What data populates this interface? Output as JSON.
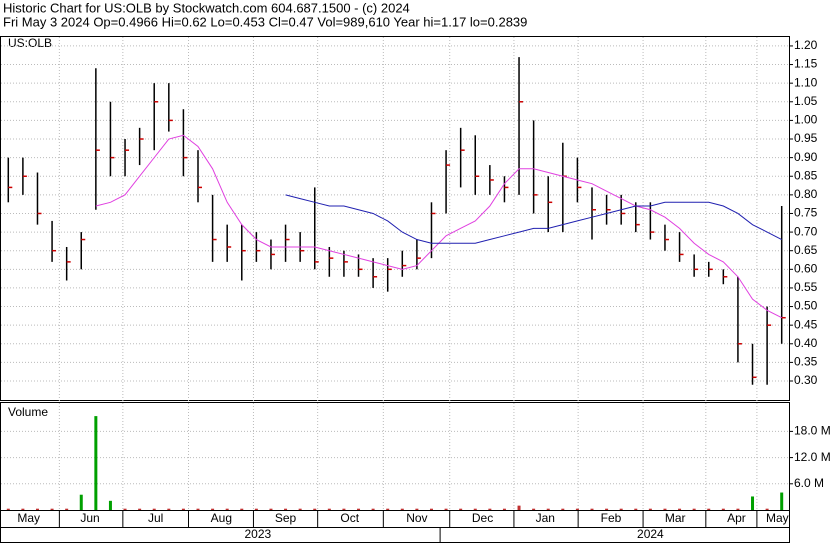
{
  "chart_data": {
    "type": "ohlc",
    "title": "Historic Chart for US:OLB by Stockwatch.com 604.687.1500 - (c) 2024",
    "subtitle": "Fri May  3 2024  Op=0.4966  Hi=0.62  Lo=0.453  Cl=0.47  Vol=989,610  Year hi=1.17  lo=0.2839",
    "symbol": "US:OLB",
    "volume_label": "Volume",
    "xlim": [
      0,
      54
    ],
    "xticks": [
      {
        "value": 1.9,
        "label": "May"
      },
      {
        "value": 6.1,
        "label": "Jun"
      },
      {
        "value": 10.6,
        "label": "Jul"
      },
      {
        "value": 15.1,
        "label": "Aug"
      },
      {
        "value": 19.5,
        "label": "Sep"
      },
      {
        "value": 23.9,
        "label": "Oct"
      },
      {
        "value": 28.5,
        "label": "Nov"
      },
      {
        "value": 33.0,
        "label": "Dec"
      },
      {
        "value": 37.3,
        "label": "Jan"
      },
      {
        "value": 41.8,
        "label": "Feb"
      },
      {
        "value": 46.2,
        "label": "Mar"
      },
      {
        "value": 50.4,
        "label": "Apr"
      },
      {
        "value": 53.2,
        "label": "May"
      }
    ],
    "years": [
      {
        "value": 17.6,
        "label": "2023"
      },
      {
        "value": 44.5,
        "label": "2024"
      }
    ],
    "ylim": [
      0.249,
      1.224
    ],
    "yticks": [
      {
        "value": 0.3,
        "label": "0.30"
      },
      {
        "value": 0.35,
        "label": "0.35"
      },
      {
        "value": 0.4,
        "label": "0.40"
      },
      {
        "value": 0.45,
        "label": "0.45"
      },
      {
        "value": 0.5,
        "label": "0.50"
      },
      {
        "value": 0.55,
        "label": "0.55"
      },
      {
        "value": 0.6,
        "label": "0.60"
      },
      {
        "value": 0.65,
        "label": "0.65"
      },
      {
        "value": 0.7,
        "label": "0.70"
      },
      {
        "value": 0.75,
        "label": "0.75"
      },
      {
        "value": 0.8,
        "label": "0.80"
      },
      {
        "value": 0.85,
        "label": "0.85"
      },
      {
        "value": 0.9,
        "label": "0.90"
      },
      {
        "value": 0.95,
        "label": "0.95"
      },
      {
        "value": 1.0,
        "label": "1.00"
      },
      {
        "value": 1.05,
        "label": "1.05"
      },
      {
        "value": 1.1,
        "label": "1.10"
      },
      {
        "value": 1.15,
        "label": "1.15"
      },
      {
        "value": 1.2,
        "label": "1.20"
      }
    ],
    "high": [
      0.9,
      0.9,
      0.86,
      0.73,
      0.66,
      0.7,
      1.14,
      1.05,
      0.95,
      0.98,
      1.1,
      1.1,
      1.03,
      0.92,
      0.8,
      0.72,
      0.72,
      0.7,
      0.68,
      0.72,
      0.7,
      0.82,
      0.66,
      0.65,
      0.64,
      0.63,
      0.63,
      0.65,
      0.68,
      0.78,
      0.92,
      0.98,
      0.96,
      0.88,
      0.85,
      1.17,
      1.0,
      0.85,
      0.94,
      0.9,
      0.82,
      0.8,
      0.8,
      0.78,
      0.78,
      0.72,
      0.7,
      0.64,
      0.62,
      0.6,
      0.58,
      0.4,
      0.5,
      0.77
    ],
    "low": [
      0.78,
      0.8,
      0.72,
      0.62,
      0.57,
      0.6,
      0.76,
      0.85,
      0.85,
      0.88,
      0.92,
      0.97,
      0.85,
      0.78,
      0.62,
      0.62,
      0.57,
      0.62,
      0.6,
      0.62,
      0.62,
      0.6,
      0.58,
      0.58,
      0.58,
      0.55,
      0.54,
      0.58,
      0.6,
      0.63,
      0.75,
      0.82,
      0.8,
      0.8,
      0.78,
      0.8,
      0.75,
      0.7,
      0.7,
      0.78,
      0.68,
      0.72,
      0.72,
      0.7,
      0.68,
      0.65,
      0.62,
      0.58,
      0.58,
      0.56,
      0.35,
      0.29,
      0.29,
      0.4
    ],
    "close": [
      0.82,
      0.85,
      0.75,
      0.65,
      0.62,
      0.68,
      0.92,
      0.9,
      0.92,
      0.95,
      1.05,
      1.0,
      0.9,
      0.82,
      0.68,
      0.66,
      0.65,
      0.65,
      0.64,
      0.68,
      0.65,
      0.62,
      0.63,
      0.62,
      0.6,
      0.58,
      0.6,
      0.61,
      0.63,
      0.75,
      0.88,
      0.92,
      0.85,
      0.84,
      0.82,
      1.05,
      0.8,
      0.78,
      0.85,
      0.82,
      0.76,
      0.76,
      0.75,
      0.72,
      0.7,
      0.68,
      0.64,
      0.6,
      0.6,
      0.58,
      0.4,
      0.31,
      0.45,
      0.47
    ],
    "bar_color": "#000000",
    "close_color": "#cc0000",
    "series": [
      {
        "color": "#e040e0",
        "values": [
          null,
          null,
          null,
          null,
          null,
          null,
          0.77,
          0.78,
          0.8,
          0.85,
          0.9,
          0.95,
          0.96,
          0.93,
          0.87,
          0.78,
          0.72,
          0.68,
          0.66,
          0.66,
          0.66,
          0.66,
          0.65,
          0.64,
          0.63,
          0.62,
          0.61,
          0.6,
          0.61,
          0.65,
          0.69,
          0.71,
          0.73,
          0.77,
          0.83,
          0.87,
          0.87,
          0.86,
          0.85,
          0.84,
          0.83,
          0.81,
          0.79,
          0.77,
          0.76,
          0.74,
          0.71,
          0.67,
          0.64,
          0.62,
          0.58,
          0.52,
          0.49,
          0.47
        ]
      },
      {
        "color": "#2020b0",
        "values": [
          null,
          null,
          null,
          null,
          null,
          null,
          null,
          null,
          null,
          null,
          null,
          null,
          null,
          null,
          null,
          null,
          null,
          null,
          null,
          0.8,
          0.79,
          0.78,
          0.77,
          0.77,
          0.76,
          0.75,
          0.73,
          0.7,
          0.68,
          0.67,
          0.67,
          0.67,
          0.67,
          0.68,
          0.69,
          0.7,
          0.71,
          0.71,
          0.72,
          0.73,
          0.74,
          0.75,
          0.76,
          0.77,
          0.77,
          0.78,
          0.78,
          0.78,
          0.78,
          0.77,
          0.75,
          0.72,
          0.7,
          0.68
        ]
      }
    ],
    "volume": [
      0.3,
      0.3,
      0.3,
      0.3,
      0.3,
      3.5,
      21.5,
      2.1,
      0.3,
      0.3,
      0.3,
      0.3,
      0.3,
      0.3,
      0.3,
      0.3,
      0.3,
      0.3,
      0.3,
      0.3,
      0.3,
      0.3,
      0.3,
      0.3,
      0.3,
      0.3,
      0.3,
      0.3,
      0.3,
      0.3,
      0.3,
      0.3,
      0.3,
      0.3,
      0.3,
      1.0,
      0.3,
      0.3,
      0.3,
      0.3,
      0.3,
      0.3,
      0.3,
      0.3,
      0.3,
      0.3,
      0.3,
      0.3,
      0.3,
      0.3,
      0.3,
      3.1,
      0.3,
      4.0
    ],
    "volume_color": "#00a000",
    "vlim": [
      0,
      24.5
    ],
    "vticks": [
      {
        "value": 6,
        "label": "6.0 M"
      },
      {
        "value": 12,
        "label": "12.0 M"
      },
      {
        "value": 18,
        "label": "18.0 M"
      }
    ],
    "grid": true
  }
}
